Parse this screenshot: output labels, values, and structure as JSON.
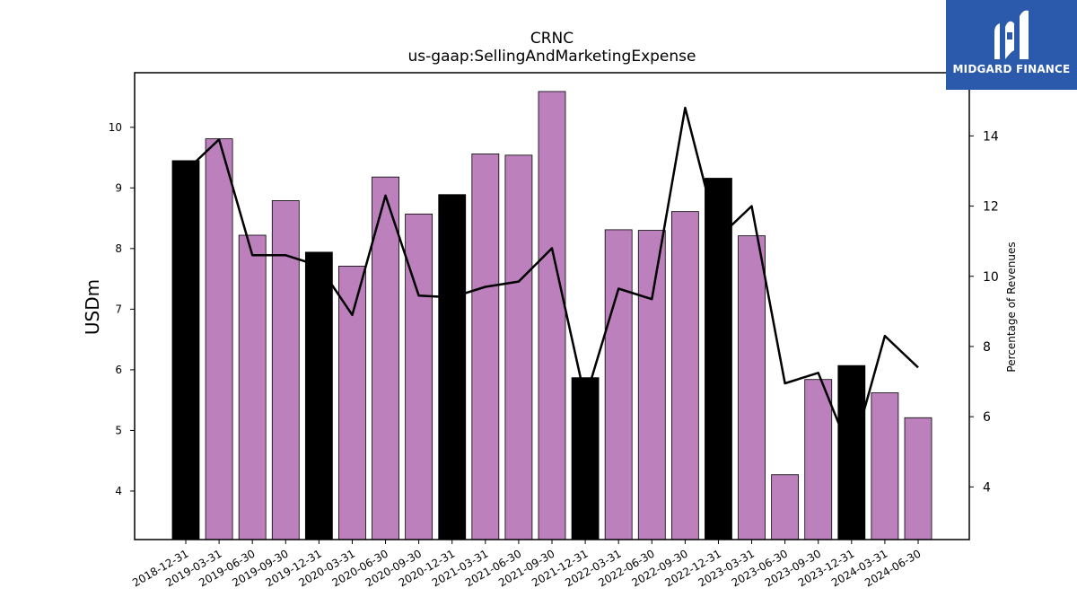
{
  "brand": {
    "name": "MIDGARD FINANCE",
    "color": "#2b5aad",
    "icon": "midgard-logo-icon"
  },
  "colors": {
    "bar_default": "#bc80bd",
    "bar_year_end": "#000000",
    "line": "#000000"
  },
  "chart_data": {
    "type": "bar",
    "title": "CRNC",
    "subtitle": "us-gaap:SellingAndMarketingExpense",
    "ylabel": "USDm",
    "y2label": "Percentage of Revenues",
    "categories": [
      "2018-12-31",
      "2019-03-31",
      "2019-06-30",
      "2019-09-30",
      "2019-12-31",
      "2020-03-31",
      "2020-06-30",
      "2020-09-30",
      "2020-12-31",
      "2021-03-31",
      "2021-06-30",
      "2021-09-30",
      "2021-12-31",
      "2022-03-31",
      "2022-06-30",
      "2022-09-30",
      "2022-12-31",
      "2023-03-31",
      "2023-06-30",
      "2023-09-30",
      "2023-12-31",
      "2024-03-31",
      "2024-06-30"
    ],
    "ylim": [
      3.2,
      10.9
    ],
    "y2lim": [
      2.5,
      15.8
    ],
    "yticks": [
      "4",
      "5",
      "6",
      "7",
      "8",
      "9",
      "10"
    ],
    "y2ticks": [
      "4",
      "6",
      "8",
      "10",
      "12",
      "14"
    ],
    "series": [
      {
        "kind": "bar",
        "values": [
          9.45,
          9.81,
          8.22,
          8.79,
          7.94,
          7.71,
          9.18,
          8.57,
          8.89,
          9.56,
          9.54,
          10.59,
          5.87,
          8.31,
          8.3,
          8.61,
          9.16,
          8.21,
          4.27,
          5.84,
          6.07,
          5.62,
          5.21
        ],
        "year_end": [
          true,
          false,
          false,
          false,
          true,
          false,
          false,
          false,
          true,
          false,
          false,
          false,
          true,
          false,
          false,
          false,
          true,
          false,
          false,
          false,
          true,
          false,
          false
        ]
      },
      {
        "kind": "line",
        "axis": "right",
        "values": [
          13.0,
          13.9,
          10.6,
          10.6,
          10.3,
          8.9,
          12.3,
          9.45,
          9.4,
          9.7,
          9.85,
          10.8,
          6.5,
          9.65,
          9.35,
          14.8,
          11.1,
          12.0,
          6.95,
          7.25,
          4.9,
          8.3,
          7.4
        ]
      }
    ]
  }
}
